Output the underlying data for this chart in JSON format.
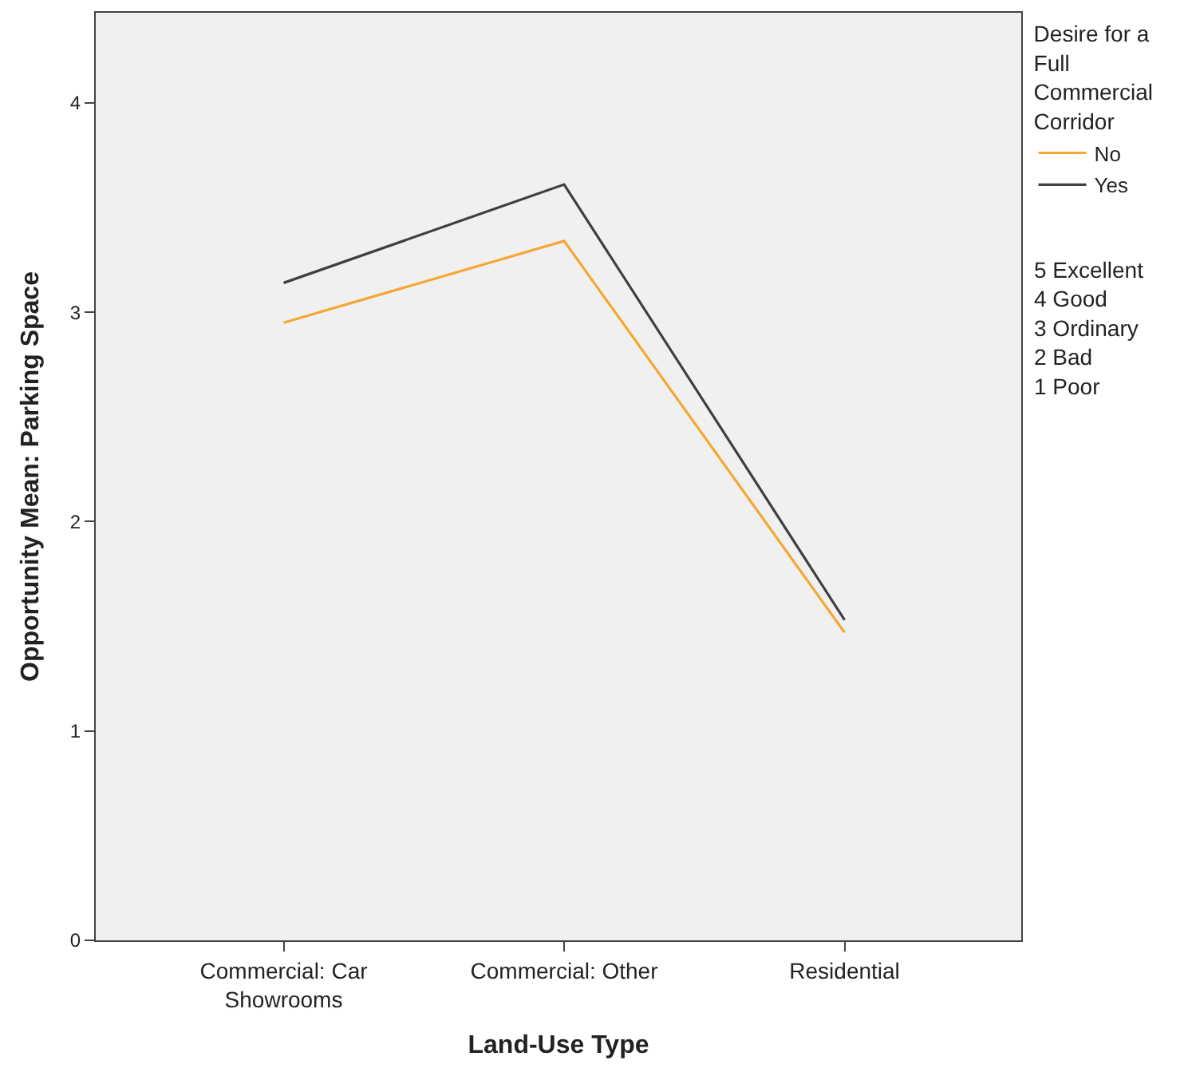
{
  "chart_data": {
    "type": "line",
    "xlabel": "Land-Use Type",
    "ylabel": "Opportunity Mean: Parking Space",
    "legend_title": "Desire for a Full Commercial Corridor",
    "categories": [
      "Commercial: Car Showrooms",
      "Commercial: Other",
      "Residential"
    ],
    "series": [
      {
        "name": "No",
        "color": "#f5a733",
        "values": [
          2.95,
          3.34,
          1.47
        ]
      },
      {
        "name": "Yes",
        "color": "#3f3f3f",
        "values": [
          3.14,
          3.61,
          1.53
        ]
      }
    ],
    "ylim": [
      0,
      4.43
    ],
    "yticks": [
      0,
      1,
      2,
      3,
      4
    ],
    "grid": false,
    "legend": "right",
    "marker": "none",
    "line_style": "solid",
    "annotations": [
      "5 Excellent\n4 Good\n3 Ordinary\n2 Bad\n1 Poor"
    ]
  }
}
